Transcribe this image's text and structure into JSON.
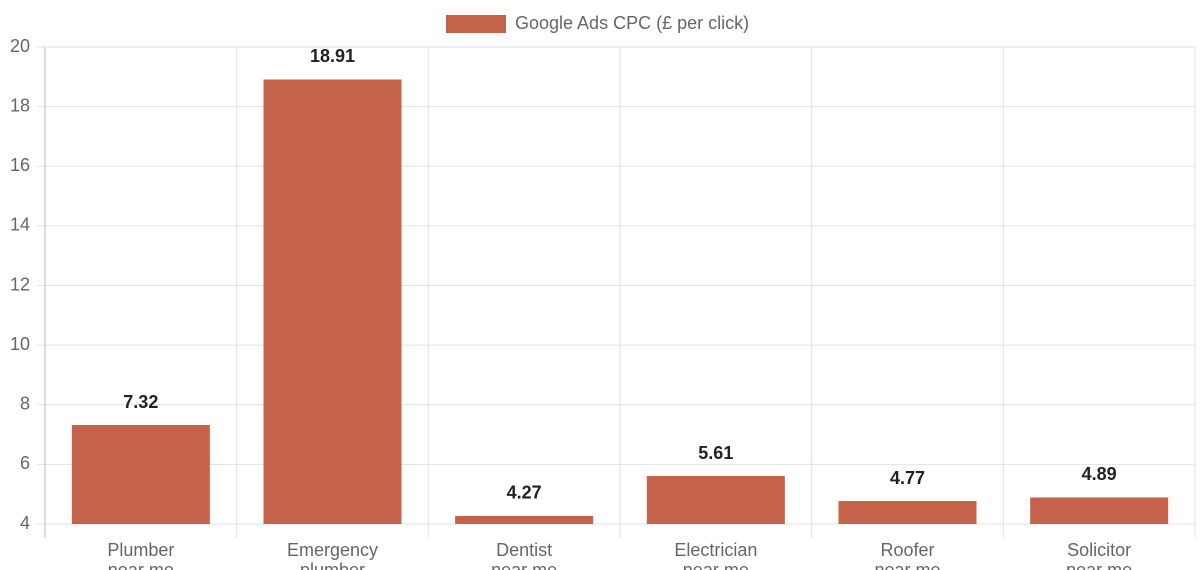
{
  "chart_data": {
    "type": "bar",
    "legend": "Google Ads CPC (£ per click)",
    "legend_position": "top",
    "categories": [
      [
        "Plumber",
        "near me"
      ],
      [
        "Emergency",
        "plumber"
      ],
      [
        "Dentist",
        "near me"
      ],
      [
        "Electrician",
        "near me"
      ],
      [
        "Roofer",
        "near me"
      ],
      [
        "Solicitor",
        "near me"
      ]
    ],
    "values": [
      7.32,
      18.91,
      4.27,
      5.61,
      4.77,
      4.89
    ],
    "color": "#c4634a",
    "ylim": [
      4,
      20
    ],
    "yticks": [
      4,
      6,
      8,
      10,
      12,
      14,
      16,
      18,
      20
    ],
    "grid": true
  }
}
